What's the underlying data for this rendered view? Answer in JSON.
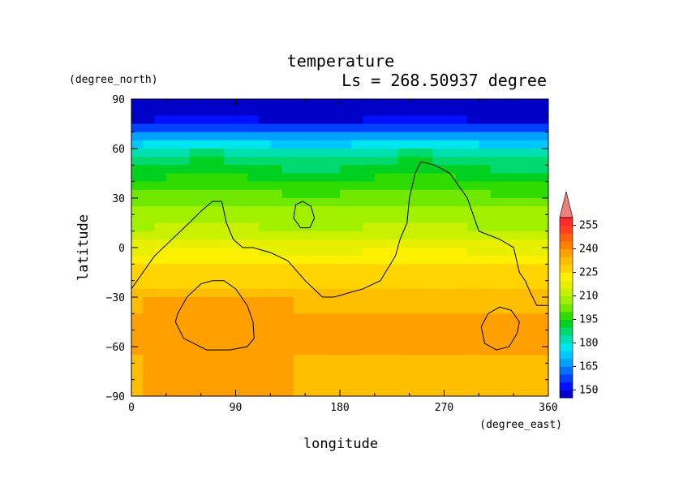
{
  "chart_data": {
    "type": "heatmap",
    "title": "temperature",
    "subtitle": "Ls = 268.50937 degree",
    "xlabel": "longitude",
    "ylabel": "latitude",
    "x_units": "(degree_east)",
    "y_units": "(degree_north)",
    "xlim": [
      0,
      360
    ],
    "ylim": [
      -90,
      90
    ],
    "x_ticks": [
      "0",
      "90",
      "180",
      "270",
      "360"
    ],
    "y_ticks": [
      "90",
      "60",
      "30",
      "0",
      "−30",
      "−60",
      "−90"
    ],
    "x_tick_values": [
      0,
      90,
      180,
      270,
      360
    ],
    "y_tick_values": [
      90,
      60,
      30,
      0,
      -30,
      -60,
      -90
    ],
    "grid": false,
    "colorbar": {
      "levels": [
        145,
        150,
        155,
        160,
        165,
        170,
        175,
        180,
        185,
        190,
        195,
        200,
        205,
        210,
        215,
        220,
        225,
        230,
        235,
        240,
        245,
        250,
        255,
        260
      ],
      "colors": [
        "#0000c8",
        "#0010ff",
        "#0040ff",
        "#0070ff",
        "#00a0ff",
        "#00c8ff",
        "#00e6ee",
        "#00e0b0",
        "#00d870",
        "#00d020",
        "#30dc00",
        "#70e800",
        "#a0f000",
        "#c8f000",
        "#e6f000",
        "#fff000",
        "#ffd400",
        "#ffbe00",
        "#ffa000",
        "#ff8000",
        "#ff6010",
        "#ff4020",
        "#ff2a2a",
        "#f08080"
      ],
      "labels": [
        "150",
        "165",
        "180",
        "195",
        "210",
        "225",
        "240",
        "255"
      ],
      "label_values": [
        150,
        165,
        180,
        195,
        210,
        225,
        240,
        255
      ],
      "extend": "max"
    },
    "zonal_profile": {
      "lat": [
        85,
        80,
        75,
        70,
        65,
        60,
        55,
        50,
        45,
        40,
        35,
        30,
        25,
        20,
        15,
        10,
        5,
        0,
        -5,
        -10,
        -15,
        -20,
        -25,
        -30,
        -35,
        -40,
        -45,
        -50,
        -55,
        -60,
        -65,
        -70,
        -75,
        -80,
        -85
      ],
      "temperature": [
        145,
        147,
        153,
        163,
        172,
        180,
        186,
        190,
        193,
        196,
        199,
        202,
        205,
        207,
        209,
        211,
        214,
        218,
        222,
        225,
        227,
        228,
        230,
        232,
        234,
        235,
        236,
        236,
        236,
        235,
        235,
        234,
        234,
        234,
        234
      ]
    },
    "warm_regions": [
      {
        "lon": [
          15,
          140
        ],
        "lat": [
          -90,
          -30
        ],
        "temperature": 238
      },
      {
        "lon": [
          200,
          280
        ],
        "lat": [
          -55,
          -20
        ],
        "temperature": 229
      }
    ],
    "contours": [
      {
        "lon": [
          0,
          10,
          20,
          35,
          50,
          60,
          70,
          78,
          82,
          88,
          96,
          105,
          120,
          135,
          150,
          165,
          175,
          185,
          200,
          215,
          228,
          232,
          238,
          240,
          245,
          250,
          262,
          275,
          290,
          295,
          300,
          318,
          330,
          335,
          340,
          345,
          350,
          360
        ],
        "lat": [
          -25,
          -15,
          -5,
          5,
          15,
          22,
          28,
          28,
          15,
          5,
          0,
          0,
          -3,
          -8,
          -20,
          -30,
          -30,
          -28,
          -25,
          -20,
          -5,
          5,
          15,
          30,
          45,
          52,
          50,
          45,
          30,
          20,
          10,
          5,
          0,
          -15,
          -20,
          -28,
          -35,
          -35
        ]
      },
      {
        "lon": [
          140,
          142,
          148,
          155,
          158,
          154,
          146,
          140
        ],
        "lat": [
          18,
          26,
          28,
          25,
          18,
          12,
          12,
          18
        ]
      },
      {
        "lon": [
          40,
          48,
          60,
          70,
          80,
          90,
          100,
          105,
          106,
          100,
          85,
          65,
          45,
          38,
          40
        ],
        "lat": [
          -40,
          -30,
          -22,
          -20,
          -20,
          -25,
          -35,
          -45,
          -55,
          -60,
          -62,
          -62,
          -55,
          -45,
          -40
        ]
      },
      {
        "lon": [
          302,
          308,
          318,
          328,
          335,
          333,
          326,
          315,
          305,
          302
        ],
        "lat": [
          -48,
          -40,
          -36,
          -38,
          -45,
          -52,
          -60,
          -62,
          -58,
          -48
        ]
      }
    ]
  }
}
